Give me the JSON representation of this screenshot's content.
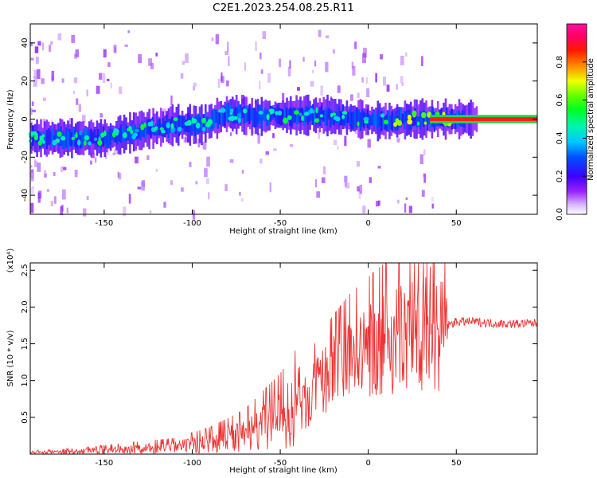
{
  "title": "C2E1.2023.254.08.25.R11",
  "chart_data": [
    {
      "type": "heatmap",
      "name": "spectrogram",
      "xlabel": "Height of straight line (km)",
      "ylabel": "Frequency (Hz)",
      "xlim": [
        -192,
        96
      ],
      "ylim": [
        -50,
        50
      ],
      "xticks": [
        -150,
        -100,
        -50,
        0,
        50
      ],
      "xtick_labels": [
        "-150",
        "-100",
        "-50",
        "0",
        "50"
      ],
      "yticks": [
        -40,
        -20,
        0,
        20,
        40
      ],
      "ytick_labels": [
        "-40",
        "-20",
        "0",
        "20",
        "40"
      ],
      "ridge": {
        "x": [
          -192,
          -170,
          -150,
          -130,
          -110,
          -95,
          -80,
          -65,
          -55,
          -45,
          -35,
          -25,
          -15,
          -5,
          5,
          15,
          25,
          35,
          50,
          70,
          96
        ],
        "frequency": [
          -10,
          -10,
          -10,
          -6,
          -3,
          -3,
          3,
          1,
          2,
          2,
          2,
          2,
          1,
          0,
          -1,
          -1,
          0,
          0,
          0,
          0,
          0
        ]
      },
      "colorbar": {
        "label": "Normalized spectral amplitude",
        "range": [
          0.0,
          1.0
        ],
        "ticks": [
          0.0,
          0.2,
          0.4,
          0.6,
          0.8
        ],
        "tick_labels": [
          "0.0",
          "0.2",
          "0.4",
          "0.6",
          "0.8"
        ]
      }
    },
    {
      "type": "line",
      "name": "snr",
      "xlabel": "Height of straight line (km)",
      "ylabel": "SNR (10 * v/v)",
      "multiplier": "(x10⁴)",
      "xlim": [
        -192,
        96
      ],
      "ylim": [
        0,
        26000
      ],
      "xticks": [
        -150,
        -100,
        -50,
        0,
        50
      ],
      "xtick_labels": [
        "-150",
        "-100",
        "-50",
        "0",
        "50"
      ],
      "yticks": [
        5000,
        10000,
        15000,
        20000,
        25000
      ],
      "ytick_labels": [
        "0.5",
        "1.0",
        "1.5",
        "2.0",
        "2.5"
      ],
      "color": "#ee3333",
      "envelope": {
        "x": [
          -192,
          -170,
          -150,
          -130,
          -110,
          -100,
          -90,
          -80,
          -70,
          -60,
          -50,
          -40,
          -35,
          -30,
          -25,
          -20,
          -15,
          -10,
          -5,
          0,
          5,
          10,
          15,
          20,
          25,
          30,
          35,
          40,
          45,
          50,
          60,
          70,
          80,
          96
        ],
        "snr": [
          200,
          300,
          500,
          700,
          900,
          1200,
          1500,
          2000,
          2500,
          3500,
          4500,
          6000,
          7000,
          8500,
          10000,
          11000,
          12000,
          13000,
          13500,
          14000,
          14500,
          15000,
          15500,
          16000,
          16500,
          17000,
          17000,
          17500,
          17500,
          18000,
          18000,
          17800,
          17700,
          17800
        ]
      }
    }
  ]
}
